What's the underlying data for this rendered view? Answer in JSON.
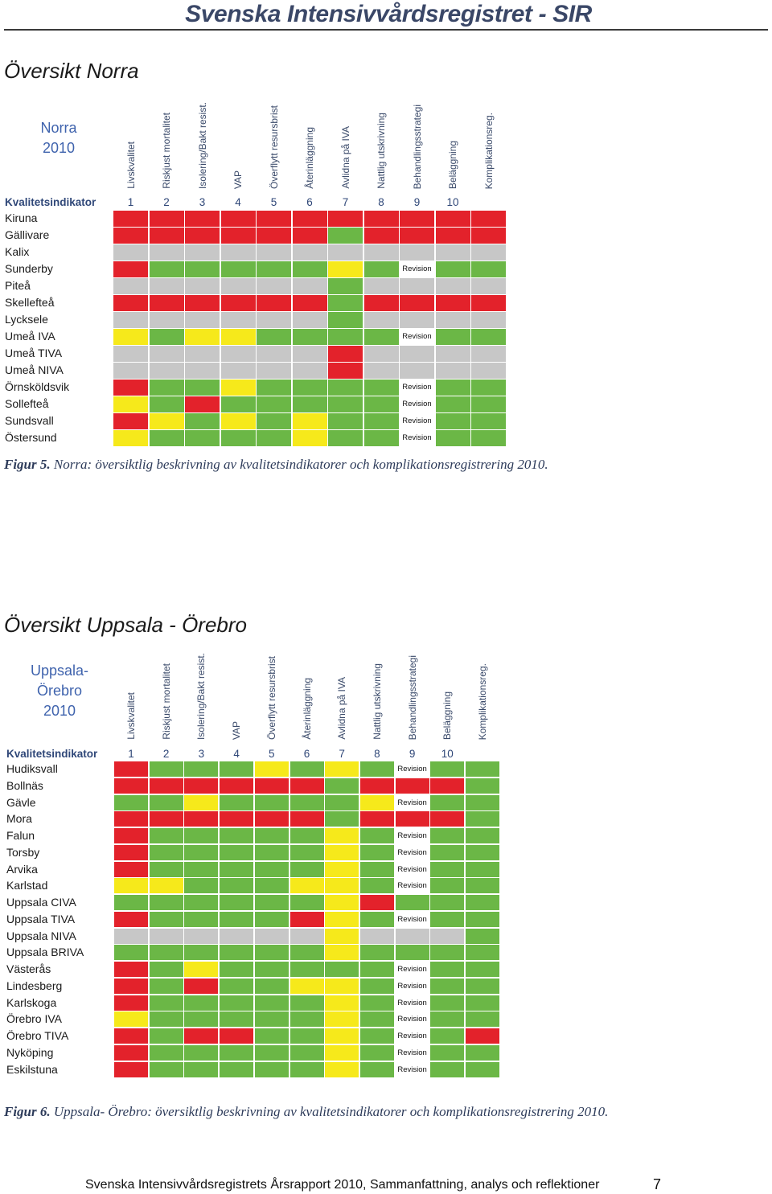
{
  "header": {
    "title": "Svenska Intensivvårdsregistret - SIR"
  },
  "colors": {
    "red": "#e3222b",
    "green": "#6bb746",
    "yellow": "#f6e91b",
    "gray": "#c7c7c7"
  },
  "section1": {
    "heading": "Översikt Norra"
  },
  "table1": {
    "region_lines": [
      "Norra",
      "2010"
    ],
    "indicator_label": "Kvalitetsindikator",
    "columns": [
      {
        "header": "Livskvalitet",
        "number": "1"
      },
      {
        "header": "Riskjust mortalitet",
        "number": "2"
      },
      {
        "header": "Isolering/Bakt resist.",
        "number": "3"
      },
      {
        "header": "VAP",
        "number": "4"
      },
      {
        "header": "Överflytt resursbrist",
        "number": "5"
      },
      {
        "header": "Återinläggning",
        "number": "6"
      },
      {
        "header": "Avlidna på IVA",
        "number": "7"
      },
      {
        "header": "Nattlig utskrivning",
        "number": "8"
      },
      {
        "header": "Behandlingsstrategi",
        "number": "9"
      },
      {
        "header": "Beläggning",
        "number": "10"
      },
      {
        "header": "Komplikationsreg."
      }
    ],
    "rows": [
      {
        "name": "Kiruna",
        "cells": [
          "red",
          "red",
          "red",
          "red",
          "red",
          "red",
          "red",
          "red",
          "red",
          "red",
          "red"
        ]
      },
      {
        "name": "Gällivare",
        "cells": [
          "red",
          "red",
          "red",
          "red",
          "red",
          "red",
          "green",
          "red",
          "red",
          "red",
          "red"
        ]
      },
      {
        "name": "Kalix",
        "cells": [
          "gray",
          "gray",
          "gray",
          "gray",
          "gray",
          "gray",
          "gray",
          "gray",
          "gray",
          "gray",
          "gray"
        ]
      },
      {
        "name": "Sunderby",
        "cells": [
          "red",
          "green",
          "green",
          "green",
          "green",
          "green",
          "yellow",
          "green",
          "Revision",
          "green",
          "green"
        ]
      },
      {
        "name": "Piteå",
        "cells": [
          "gray",
          "gray",
          "gray",
          "gray",
          "gray",
          "gray",
          "green",
          "gray",
          "gray",
          "gray",
          "gray"
        ]
      },
      {
        "name": "Skellefteå",
        "cells": [
          "red",
          "red",
          "red",
          "red",
          "red",
          "red",
          "green",
          "red",
          "red",
          "red",
          "red"
        ]
      },
      {
        "name": "Lycksele",
        "cells": [
          "gray",
          "gray",
          "gray",
          "gray",
          "gray",
          "gray",
          "green",
          "gray",
          "gray",
          "gray",
          "gray"
        ]
      },
      {
        "name": "Umeå IVA",
        "cells": [
          "yellow",
          "green",
          "yellow",
          "yellow",
          "green",
          "green",
          "green",
          "green",
          "Revision",
          "green",
          "green"
        ]
      },
      {
        "name": "Umeå TIVA",
        "cells": [
          "gray",
          "gray",
          "gray",
          "gray",
          "gray",
          "gray",
          "red",
          "gray",
          "gray",
          "gray",
          "gray"
        ]
      },
      {
        "name": "Umeå NIVA",
        "cells": [
          "gray",
          "gray",
          "gray",
          "gray",
          "gray",
          "gray",
          "red",
          "gray",
          "gray",
          "gray",
          "gray"
        ]
      },
      {
        "name": "Örnsköldsvik",
        "cells": [
          "red",
          "green",
          "green",
          "yellow",
          "green",
          "green",
          "green",
          "green",
          "Revision",
          "green",
          "green"
        ]
      },
      {
        "name": "Sollefteå",
        "cells": [
          "yellow",
          "green",
          "red",
          "green",
          "green",
          "green",
          "green",
          "green",
          "Revision",
          "green",
          "green"
        ]
      },
      {
        "name": "Sundsvall",
        "cells": [
          "red",
          "yellow",
          "green",
          "yellow",
          "green",
          "yellow",
          "green",
          "green",
          "Revision",
          "green",
          "green"
        ]
      },
      {
        "name": "Östersund",
        "cells": [
          "yellow",
          "green",
          "green",
          "green",
          "green",
          "yellow",
          "green",
          "green",
          "Revision",
          "green",
          "green"
        ]
      }
    ]
  },
  "caption1": {
    "label": "Figur 5.",
    "text": "Norra: översiktlig beskrivning av kvalitetsindikatorer och komplikationsregistrering 2010."
  },
  "section2": {
    "heading": "Översikt Uppsala - Örebro"
  },
  "table2": {
    "region_lines": [
      "Uppsala-",
      "Örebro",
      "2010"
    ],
    "indicator_label": "Kvalitetsindikator",
    "columns": [
      {
        "header": "Livskvalitet",
        "number": "1"
      },
      {
        "header": "Riskjust mortalitet",
        "number": "2"
      },
      {
        "header": "Isolering/Bakt resist.",
        "number": "3"
      },
      {
        "header": "VAP",
        "number": "4"
      },
      {
        "header": "Överflytt resursbrist",
        "number": "5"
      },
      {
        "header": "Återinläggning",
        "number": "6"
      },
      {
        "header": "Avlidna på IVA",
        "number": "7"
      },
      {
        "header": "Nattlig utskrivning",
        "number": "8"
      },
      {
        "header": "Behandlingsstrategi",
        "number": "9"
      },
      {
        "header": "Beläggning",
        "number": "10"
      },
      {
        "header": "Komplikationsreg."
      }
    ],
    "rows": [
      {
        "name": "Hudiksvall",
        "cells": [
          "red",
          "green",
          "green",
          "green",
          "yellow",
          "green",
          "yellow",
          "green",
          "Revision",
          "green",
          "green"
        ]
      },
      {
        "name": "Bollnäs",
        "cells": [
          "red",
          "red",
          "red",
          "red",
          "red",
          "red",
          "green",
          "red",
          "red",
          "red",
          "green"
        ]
      },
      {
        "name": "Gävle",
        "cells": [
          "green",
          "green",
          "yellow",
          "green",
          "green",
          "green",
          "green",
          "yellow",
          "Revision",
          "green",
          "green"
        ]
      },
      {
        "name": "Mora",
        "cells": [
          "red",
          "red",
          "red",
          "red",
          "red",
          "red",
          "green",
          "red",
          "red",
          "red",
          "green"
        ]
      },
      {
        "name": "Falun",
        "cells": [
          "red",
          "green",
          "green",
          "green",
          "green",
          "green",
          "yellow",
          "green",
          "Revision",
          "green",
          "green"
        ]
      },
      {
        "name": "Torsby",
        "cells": [
          "red",
          "green",
          "green",
          "green",
          "green",
          "green",
          "yellow",
          "green",
          "Revision",
          "green",
          "green"
        ]
      },
      {
        "name": "Arvika",
        "cells": [
          "red",
          "green",
          "green",
          "green",
          "green",
          "green",
          "yellow",
          "green",
          "Revision",
          "green",
          "green"
        ]
      },
      {
        "name": "Karlstad",
        "cells": [
          "yellow",
          "yellow",
          "green",
          "green",
          "green",
          "yellow",
          "yellow",
          "green",
          "Revision",
          "green",
          "green"
        ]
      },
      {
        "name": "Uppsala CIVA",
        "cells": [
          "green",
          "green",
          "green",
          "green",
          "green",
          "green",
          "yellow",
          "red",
          "green",
          "green",
          "green"
        ]
      },
      {
        "name": "Uppsala TIVA",
        "cells": [
          "red",
          "green",
          "green",
          "green",
          "green",
          "red",
          "yellow",
          "green",
          "Revision",
          "green",
          "green"
        ]
      },
      {
        "name": "Uppsala NIVA",
        "cells": [
          "gray",
          "gray",
          "gray",
          "gray",
          "gray",
          "gray",
          "yellow",
          "gray",
          "gray",
          "gray",
          "green"
        ]
      },
      {
        "name": "Uppsala BRIVA",
        "cells": [
          "green",
          "green",
          "green",
          "green",
          "green",
          "green",
          "yellow",
          "green",
          "green",
          "green",
          "green"
        ]
      },
      {
        "name": "Västerås",
        "cells": [
          "red",
          "green",
          "yellow",
          "green",
          "green",
          "green",
          "green",
          "green",
          "Revision",
          "green",
          "green"
        ]
      },
      {
        "name": "Lindesberg",
        "cells": [
          "red",
          "green",
          "red",
          "green",
          "green",
          "yellow",
          "yellow",
          "green",
          "Revision",
          "green",
          "green"
        ]
      },
      {
        "name": "Karlskoga",
        "cells": [
          "red",
          "green",
          "green",
          "green",
          "green",
          "green",
          "yellow",
          "green",
          "Revision",
          "green",
          "green"
        ]
      },
      {
        "name": "Örebro IVA",
        "cells": [
          "yellow",
          "green",
          "green",
          "green",
          "green",
          "green",
          "yellow",
          "green",
          "Revision",
          "green",
          "green"
        ]
      },
      {
        "name": "Örebro TIVA",
        "cells": [
          "red",
          "green",
          "red",
          "red",
          "green",
          "green",
          "yellow",
          "green",
          "Revision",
          "green",
          "red"
        ]
      },
      {
        "name": "Nyköping",
        "cells": [
          "red",
          "green",
          "green",
          "green",
          "green",
          "green",
          "yellow",
          "green",
          "Revision",
          "green",
          "green"
        ]
      },
      {
        "name": "Eskilstuna",
        "cells": [
          "red",
          "green",
          "green",
          "green",
          "green",
          "green",
          "yellow",
          "green",
          "Revision",
          "green",
          "green"
        ]
      }
    ]
  },
  "caption2": {
    "label": "Figur 6.",
    "text": "Uppsala- Örebro: översiktlig beskrivning av kvalitetsindikatorer och komplikationsregistrering 2010."
  },
  "footer": {
    "text": "Svenska Intensivvårdsregistrets Årsrapport 2010, Sammanfattning, analys och reflektioner",
    "page": "7"
  }
}
